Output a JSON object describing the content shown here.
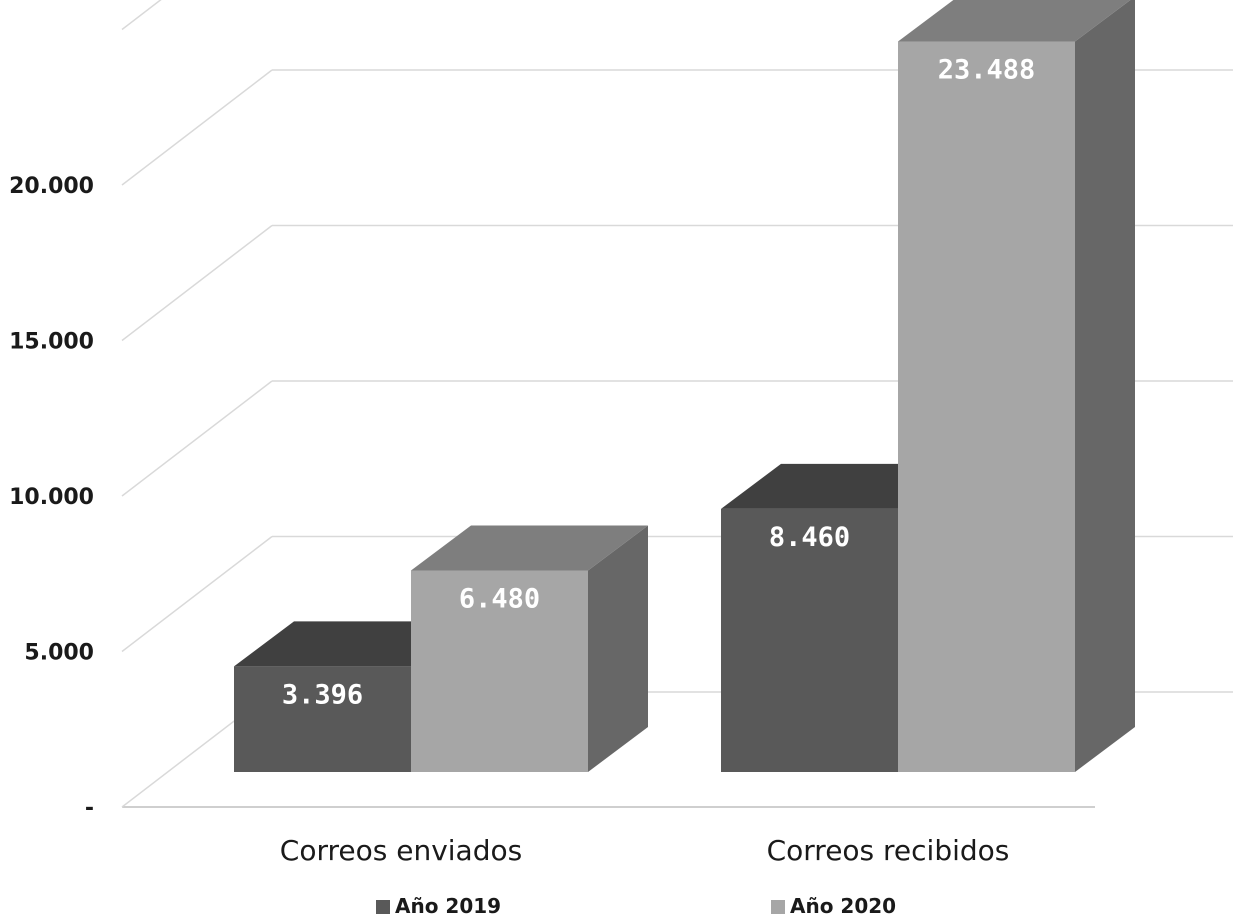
{
  "chart_data": {
    "type": "bar",
    "categories": [
      "Correos enviados",
      "Correos recibidos"
    ],
    "series": [
      {
        "name": "Año 2019",
        "values": [
          3396,
          8460
        ],
        "labels": [
          "3.396",
          "8.460"
        ],
        "color": "#595959"
      },
      {
        "name": "Año 2020",
        "values": [
          6480,
          23488
        ],
        "labels": [
          "6.480",
          "23.488"
        ],
        "color": "#a6a6a6"
      }
    ],
    "yticks": [
      0,
      5000,
      10000,
      15000,
      20000
    ],
    "ytick_labels": [
      "-",
      "5.000",
      "10.000",
      "15.000",
      "20.000"
    ],
    "ylim": [
      0,
      25000
    ],
    "grid": true,
    "legend": "bottom",
    "style": "3d-column",
    "colors": {
      "grid": "#d9d9d9",
      "axis": "#bfbfbf"
    }
  }
}
